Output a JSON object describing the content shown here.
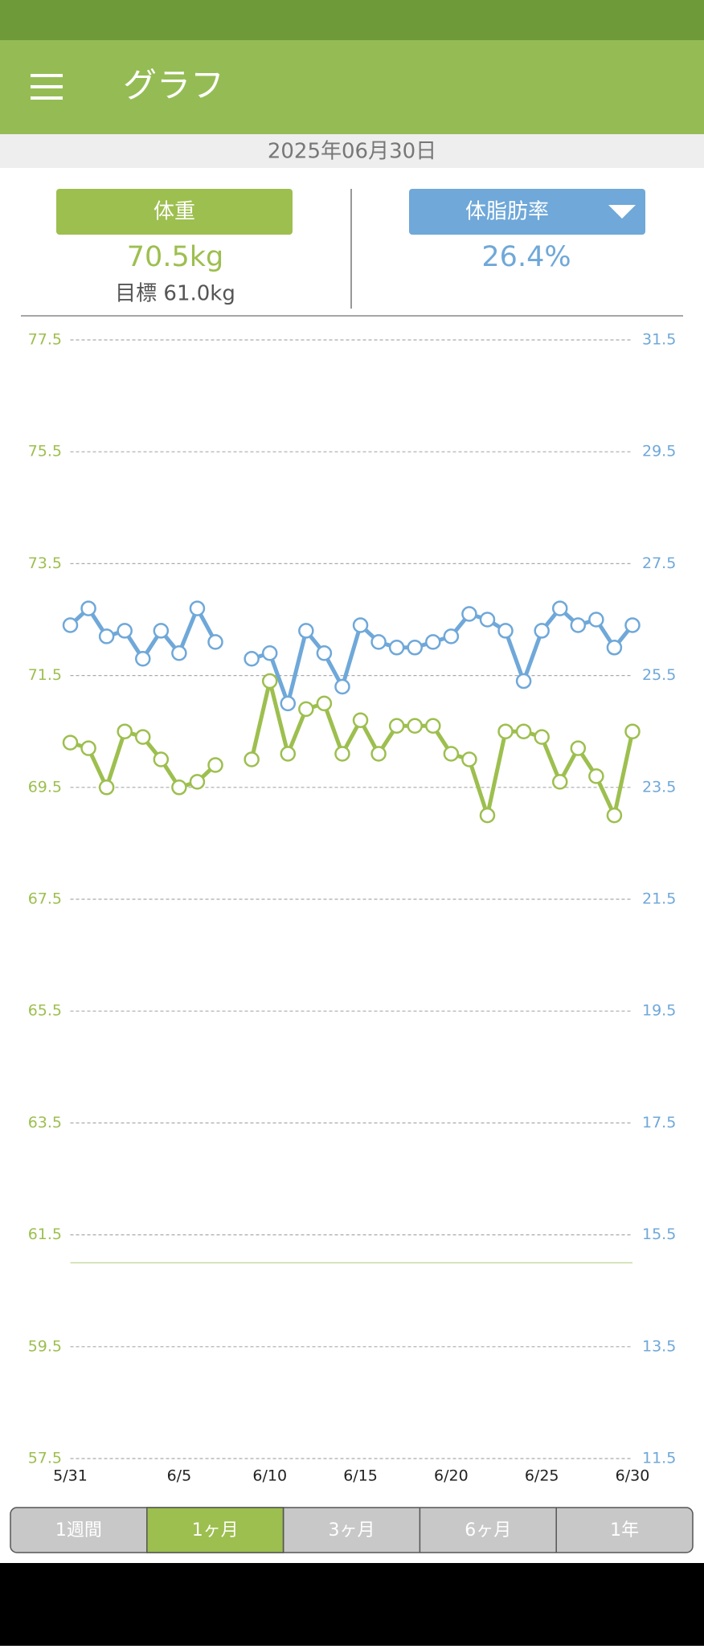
{
  "header": {
    "title": "グラフ",
    "date": "2025年06月30日"
  },
  "summary": {
    "weight": "70.5kg",
    "goal": "目標 61.0kg",
    "fat": "26.4%"
  },
  "tabs": [
    "1週間",
    "1ヶ月",
    "3ヶ月",
    "6ヶ月",
    "1年"
  ],
  "selected_tab": 1,
  "chart_data": {
    "type": "line",
    "categories": [
      "5/31",
      null,
      null,
      null,
      null,
      null,
      "6/5",
      null,
      null,
      null,
      null,
      "6/10",
      null,
      null,
      null,
      null,
      "6/15",
      null,
      null,
      null,
      null,
      "6/20",
      null,
      null,
      null,
      null,
      "6/25",
      null,
      null,
      null,
      null,
      "6/30"
    ],
    "series": [
      {
        "name": "体重",
        "color": "#9dbf4f",
        "values": [
          70.3,
          70.2,
          69.5,
          70.5,
          70.4,
          70.0,
          69.5,
          69.6,
          69.9,
          null,
          70.0,
          71.4,
          70.1,
          70.9,
          71.0,
          70.1,
          70.7,
          70.1,
          70.6,
          70.6,
          70.6,
          70.1,
          70.0,
          69.0,
          70.5,
          70.5,
          70.4,
          69.6,
          70.2,
          69.7,
          69.0,
          70.5
        ]
      },
      {
        "name": "体脂肪率",
        "color": "#6fa8d9",
        "axis": "y2",
        "values": [
          26.4,
          26.7,
          26.2,
          26.3,
          25.8,
          26.3,
          25.9,
          26.7,
          26.1,
          null,
          25.8,
          25.9,
          25.0,
          26.3,
          25.9,
          25.3,
          26.4,
          26.1,
          26.0,
          26.0,
          26.1,
          26.2,
          26.6,
          26.5,
          26.3,
          25.4,
          26.3,
          26.7,
          26.4,
          26.5,
          26.0,
          26.4
        ]
      }
    ],
    "goal_line": 61.0,
    "ylim": [
      57.5,
      77.5
    ],
    "yticks": [
      77.5,
      75.5,
      73.5,
      71.5,
      69.5,
      67.5,
      65.5,
      63.5,
      61.5,
      59.5,
      57.5
    ],
    "y2lim": [
      11.5,
      31.5
    ],
    "y2ticks": [
      31.5,
      29.5,
      27.5,
      25.5,
      23.5,
      21.5,
      19.5,
      17.5,
      15.5,
      13.5,
      11.5
    ],
    "grid": true
  }
}
